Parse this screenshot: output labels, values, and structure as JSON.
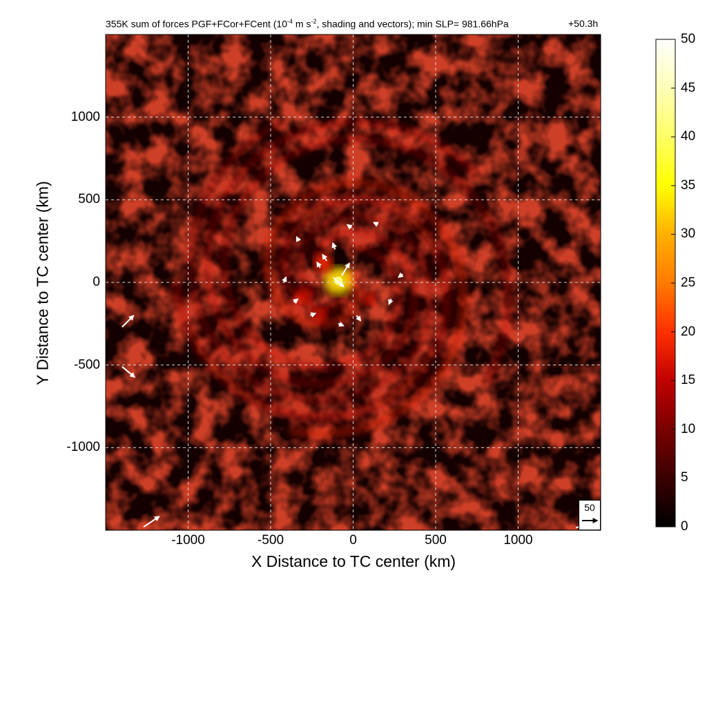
{
  "title": {
    "prefix": "355K sum of forces PGF+FCor+FCent (10",
    "exp1": "-4",
    "mid": " m s",
    "exp2": "-2",
    "suffix": ", shading and vectors); min SLP= 981.66hPa",
    "time": "+50.3h"
  },
  "reference_vector": {
    "label": "50"
  },
  "colorbar": {
    "ticks": [
      "50",
      "45",
      "40",
      "35",
      "30",
      "25",
      "20",
      "15",
      "10",
      "5",
      "0"
    ],
    "colors": [
      "#000000",
      "#3a0000",
      "#7a0000",
      "#b00000",
      "#e31a00",
      "#ff5a00",
      "#ff9800",
      "#ffd000",
      "#ffff33",
      "#ffffb0",
      "#ffffff"
    ]
  },
  "chart_data": {
    "type": "heatmap",
    "title": "355K sum of forces PGF+FCor+FCent (10-4 m s-2, shading and vectors); min SLP= 981.66hPa",
    "annotation": "+50.3h",
    "xlabel": "X Distance to TC center (km)",
    "ylabel": "Y Distance to TC center (km)",
    "xlim": [
      -1500,
      1500
    ],
    "ylim": [
      -1500,
      1500
    ],
    "xticks": [
      "-1000",
      "-500",
      "0",
      "500",
      "1000"
    ],
    "yticks": [
      "1000",
      "500",
      "0",
      "-500",
      "-1000"
    ],
    "colorbar_range": [
      0,
      50
    ],
    "grid": true,
    "hotspots": [
      {
        "x": -90,
        "y": 10,
        "value": 32
      },
      {
        "x": -180,
        "y": 120,
        "value": 17
      },
      {
        "x": -300,
        "y": -80,
        "value": 14
      },
      {
        "x": -200,
        "y": -200,
        "value": 11
      },
      {
        "x": 100,
        "y": -100,
        "value": 9
      }
    ],
    "vectors": [
      {
        "x": -120,
        "y": 30,
        "u": 20,
        "v": -18
      },
      {
        "x": -70,
        "y": 40,
        "u": 15,
        "v": 24
      },
      {
        "x": -160,
        "y": 130,
        "u": -8,
        "v": 12
      },
      {
        "x": -200,
        "y": 90,
        "u": -6,
        "v": 10
      },
      {
        "x": -110,
        "y": 200,
        "u": -4,
        "v": 12
      },
      {
        "x": -330,
        "y": 250,
        "u": -4,
        "v": 8
      },
      {
        "x": -420,
        "y": 0,
        "u": 4,
        "v": 10
      },
      {
        "x": -360,
        "y": -120,
        "u": 8,
        "v": 6
      },
      {
        "x": -260,
        "y": -200,
        "u": 10,
        "v": 4
      },
      {
        "x": -90,
        "y": -250,
        "u": 10,
        "v": -4
      },
      {
        "x": 20,
        "y": -200,
        "u": 8,
        "v": -10
      },
      {
        "x": 230,
        "y": -100,
        "u": -4,
        "v": -10
      },
      {
        "x": 300,
        "y": 50,
        "u": -8,
        "v": -6
      },
      {
        "x": 150,
        "y": 350,
        "u": -8,
        "v": 4
      },
      {
        "x": -10,
        "y": 330,
        "u": -8,
        "v": 6
      },
      {
        "x": -1400,
        "y": -270,
        "u": 22,
        "v": 22
      },
      {
        "x": -1400,
        "y": -510,
        "u": 24,
        "v": -20
      },
      {
        "x": -1270,
        "y": -1480,
        "u": 30,
        "v": 20
      },
      {
        "x": 1350,
        "y": -1485,
        "u": 25,
        "v": 8
      }
    ]
  }
}
